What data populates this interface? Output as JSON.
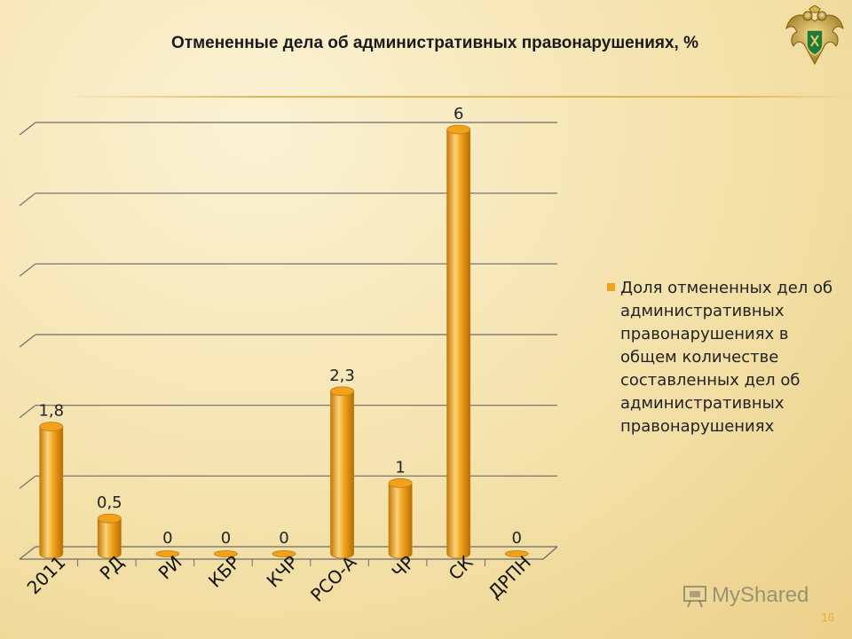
{
  "slide": {
    "title": "Отмененные дела об административных правонарушениях, %",
    "page_number": "16",
    "watermark": "MyShared",
    "emblem_icon": "double-headed-eagle-emblem-icon"
  },
  "chart_data": {
    "type": "bar",
    "title": "Отмененные дела об административных правонарушениях, %",
    "categories": [
      "2011",
      "РД",
      "РИ",
      "КБР",
      "КЧР",
      "РСО-А",
      "ЧР",
      "СК",
      "ДРПН"
    ],
    "series": [
      {
        "name": "Доля отмененных дел об административных правонарушениях в общем количестве составленных дел об административных правонарушениях",
        "values": [
          1.8,
          0.5,
          0,
          0,
          0,
          2.3,
          1,
          6,
          0
        ],
        "labels": [
          "1,8",
          "0,5",
          "0",
          "0",
          "0",
          "2,3",
          "1",
          "6",
          "0"
        ]
      }
    ],
    "ylim": [
      0,
      6
    ],
    "y_gridlines": 6,
    "grid": true,
    "legend_position": "right",
    "colors": {
      "bar": "#f0a21c",
      "bar_dark": "#c47a08",
      "bar_light": "#fcd27a",
      "grid": "#6b6b6b"
    }
  }
}
